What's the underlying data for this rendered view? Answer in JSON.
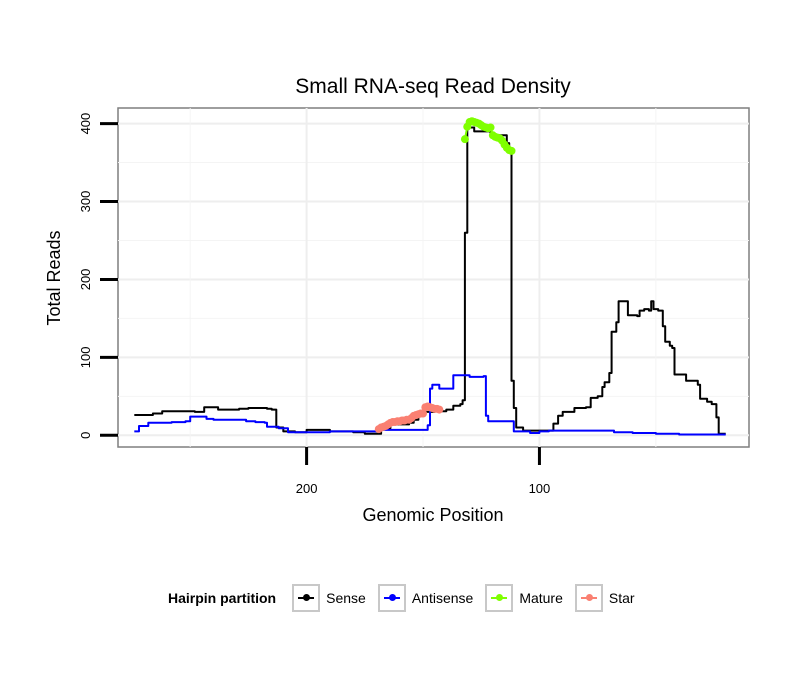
{
  "chart_data": {
    "type": "line",
    "title": "Small RNA-seq Read Density",
    "xlabel": "Genomic Position",
    "ylabel": "Total Reads",
    "xlim": [
      281,
      10
    ],
    "ylim": [
      -15,
      420
    ],
    "x_reversed": true,
    "x_ticks": [
      200,
      100
    ],
    "y_ticks": [
      0,
      100,
      200,
      300,
      400
    ],
    "grid": true,
    "legend_title": "Hairpin partition",
    "legend_position": "bottom",
    "series": [
      {
        "name": "Sense",
        "color": "#000000",
        "markers": false,
        "points": [
          [
            274,
            26
          ],
          [
            268,
            26
          ],
          [
            266,
            28
          ],
          [
            262,
            31
          ],
          [
            252,
            31
          ],
          [
            248,
            30
          ],
          [
            244,
            36
          ],
          [
            240,
            36
          ],
          [
            238,
            33
          ],
          [
            229,
            34
          ],
          [
            225,
            35
          ],
          [
            217,
            34
          ],
          [
            215,
            33
          ],
          [
            213,
            10
          ],
          [
            210,
            5
          ],
          [
            205,
            4
          ],
          [
            200,
            7
          ],
          [
            190,
            5
          ],
          [
            180,
            4
          ],
          [
            175,
            2
          ],
          [
            171,
            2
          ],
          [
            168,
            9
          ],
          [
            164,
            14
          ],
          [
            156,
            16
          ],
          [
            154,
            20
          ],
          [
            152,
            25
          ],
          [
            150,
            30
          ],
          [
            145,
            31
          ],
          [
            140,
            33
          ],
          [
            137,
            38
          ],
          [
            134,
            40
          ],
          [
            133,
            45
          ],
          [
            132,
            260
          ],
          [
            131,
            395
          ],
          [
            128,
            390
          ],
          [
            121,
            385
          ],
          [
            114,
            375
          ],
          [
            113,
            365
          ],
          [
            112,
            70
          ],
          [
            111,
            35
          ],
          [
            110,
            10
          ],
          [
            107,
            6
          ],
          [
            100,
            6
          ],
          [
            96,
            6
          ],
          [
            94,
            15
          ],
          [
            92,
            25
          ],
          [
            90,
            30
          ],
          [
            85,
            35
          ],
          [
            80,
            36
          ],
          [
            78,
            48
          ],
          [
            75,
            50
          ],
          [
            73,
            62
          ],
          [
            72,
            68
          ],
          [
            70,
            80
          ],
          [
            69,
            133
          ],
          [
            68,
            133
          ],
          [
            67,
            145
          ],
          [
            66,
            172
          ],
          [
            63,
            172
          ],
          [
            62,
            154
          ],
          [
            58,
            153
          ],
          [
            57,
            160
          ],
          [
            55,
            162
          ],
          [
            53,
            160
          ],
          [
            52,
            172
          ],
          [
            51,
            162
          ],
          [
            49,
            160
          ],
          [
            47,
            140
          ],
          [
            46,
            120
          ],
          [
            44,
            115
          ],
          [
            43,
            112
          ],
          [
            42,
            78
          ],
          [
            38,
            78
          ],
          [
            37,
            70
          ],
          [
            33,
            70
          ],
          [
            32,
            65
          ],
          [
            31,
            47
          ],
          [
            28,
            43
          ],
          [
            26,
            40
          ],
          [
            24,
            23
          ],
          [
            23,
            2
          ],
          [
            20,
            2
          ]
        ]
      },
      {
        "name": "Antisense",
        "color": "#0000ff",
        "markers": false,
        "points": [
          [
            274,
            5
          ],
          [
            272,
            12
          ],
          [
            268,
            16
          ],
          [
            258,
            17
          ],
          [
            252,
            18
          ],
          [
            250,
            24
          ],
          [
            245,
            24
          ],
          [
            243,
            21
          ],
          [
            240,
            20
          ],
          [
            230,
            20
          ],
          [
            226,
            18
          ],
          [
            222,
            17
          ],
          [
            218,
            16
          ],
          [
            217,
            11
          ],
          [
            212,
            9
          ],
          [
            208,
            4
          ],
          [
            200,
            4
          ],
          [
            190,
            5
          ],
          [
            180,
            5
          ],
          [
            171,
            5
          ],
          [
            169,
            7
          ],
          [
            160,
            7
          ],
          [
            150,
            7
          ],
          [
            148,
            13
          ],
          [
            147,
            60
          ],
          [
            146,
            65
          ],
          [
            143,
            60
          ],
          [
            138,
            60
          ],
          [
            137,
            77
          ],
          [
            132,
            77
          ],
          [
            130,
            75
          ],
          [
            124,
            76
          ],
          [
            123,
            25
          ],
          [
            122,
            18
          ],
          [
            112,
            18
          ],
          [
            111,
            5
          ],
          [
            104,
            3
          ],
          [
            100,
            5
          ],
          [
            96,
            6
          ],
          [
            92,
            6
          ],
          [
            84,
            6
          ],
          [
            80,
            6
          ],
          [
            72,
            6
          ],
          [
            68,
            4
          ],
          [
            60,
            3
          ],
          [
            50,
            2
          ],
          [
            40,
            1
          ],
          [
            20,
            1
          ]
        ]
      },
      {
        "name": "Mature",
        "color": "#7fff00",
        "markers": true,
        "points": [
          [
            132,
            380
          ],
          [
            131,
            396
          ],
          [
            130,
            402
          ],
          [
            129,
            403
          ],
          [
            128,
            402
          ],
          [
            127,
            401
          ],
          [
            126,
            400
          ],
          [
            125,
            398
          ],
          [
            124,
            396
          ],
          [
            123,
            395
          ],
          [
            122,
            394
          ],
          [
            121,
            395
          ],
          [
            120,
            385
          ],
          [
            119,
            383
          ],
          [
            118,
            382
          ],
          [
            117,
            381
          ],
          [
            116,
            378
          ],
          [
            115,
            373
          ],
          [
            114,
            369
          ],
          [
            113,
            366
          ],
          [
            112,
            365
          ]
        ]
      },
      {
        "name": "Star",
        "color": "#fa8072",
        "markers": true,
        "points": [
          [
            169,
            8
          ],
          [
            168,
            10
          ],
          [
            167,
            11
          ],
          [
            166,
            12
          ],
          [
            165,
            14
          ],
          [
            164,
            16
          ],
          [
            163,
            17
          ],
          [
            162,
            17
          ],
          [
            161,
            18
          ],
          [
            160,
            18
          ],
          [
            159,
            19
          ],
          [
            158,
            19
          ],
          [
            157,
            20
          ],
          [
            156,
            20
          ],
          [
            155,
            22
          ],
          [
            154,
            25
          ],
          [
            153,
            26
          ],
          [
            152,
            27
          ],
          [
            151,
            28
          ],
          [
            150,
            28
          ],
          [
            149,
            36
          ],
          [
            148,
            37
          ],
          [
            147,
            36
          ],
          [
            146,
            35
          ],
          [
            145,
            34
          ],
          [
            144,
            34
          ],
          [
            143,
            33
          ]
        ]
      }
    ]
  }
}
